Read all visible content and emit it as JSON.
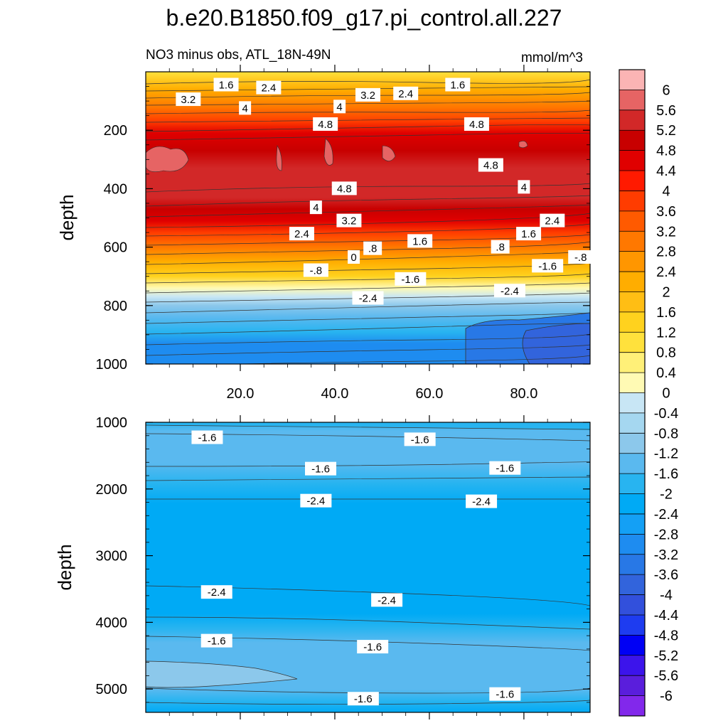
{
  "chart_data": {
    "type": "contour",
    "title": "b.e20.B1850.f09_g17.pi_control.all.227",
    "subtitle_left": "NO3 minus obs, ATL_18N-49N",
    "subtitle_right": "mmol/m^3",
    "colorbar": {
      "levels": [
        "6",
        "5.6",
        "5.2",
        "4.8",
        "4.4",
        "4",
        "3.6",
        "3.2",
        "2.8",
        "2.4",
        "2",
        "1.6",
        "1.2",
        "0.8",
        "0.4",
        "0",
        "-0.4",
        "-0.8",
        "-1.2",
        "-1.6",
        "-2",
        "-2.4",
        "-2.8",
        "-3.2",
        "-3.6",
        "-4",
        "-4.4",
        "-4.8",
        "-5.2",
        "-5.6",
        "-6"
      ],
      "colors": [
        "#fbb4b4",
        "#e66464",
        "#d22828",
        "#c80000",
        "#e00000",
        "#ff1a00",
        "#ff3c00",
        "#ff5a00",
        "#ff7800",
        "#ff9600",
        "#ffad00",
        "#ffbe14",
        "#ffd21e",
        "#ffe13c",
        "#fff078",
        "#fffab4",
        "#c8e6f5",
        "#a5d7f0",
        "#8cc8eb",
        "#5ab9ef",
        "#28b4f0",
        "#00aaf5",
        "#14a0f5",
        "#1e8cf0",
        "#2878e6",
        "#3264dc",
        "#3250dc",
        "#1e3cf0",
        "#0000f5",
        "#3c14eb",
        "#5a1edc",
        "#8228eb"
      ]
    },
    "panels": [
      {
        "name": "upper",
        "ylabel": "depth",
        "ylim": [
          0,
          1000
        ],
        "y_reversed": true,
        "xlim": [
          0,
          94
        ],
        "yticks": [
          "200",
          "400",
          "600",
          "800",
          "1000"
        ],
        "xticks": [
          "20.0",
          "40.0",
          "60.0",
          "80.0"
        ],
        "contour_labels": [
          {
            "text": "1.6",
            "x": 17,
            "y": 45
          },
          {
            "text": "2.4",
            "x": 26,
            "y": 55
          },
          {
            "text": "3.2",
            "x": 9,
            "y": 95
          },
          {
            "text": "4",
            "x": 21,
            "y": 125
          },
          {
            "text": "4",
            "x": 41,
            "y": 120
          },
          {
            "text": "3.2",
            "x": 47,
            "y": 80
          },
          {
            "text": "2.4",
            "x": 55,
            "y": 75
          },
          {
            "text": "1.6",
            "x": 66,
            "y": 45
          },
          {
            "text": "4.8",
            "x": 38,
            "y": 180
          },
          {
            "text": "4.8",
            "x": 70,
            "y": 180
          },
          {
            "text": "4.8",
            "x": 73,
            "y": 320
          },
          {
            "text": "4.8",
            "x": 42,
            "y": 400
          },
          {
            "text": "4",
            "x": 80,
            "y": 395
          },
          {
            "text": "4",
            "x": 36,
            "y": 465
          },
          {
            "text": "3.2",
            "x": 43,
            "y": 510
          },
          {
            "text": "2.4",
            "x": 33,
            "y": 555
          },
          {
            "text": "2.4",
            "x": 86,
            "y": 510
          },
          {
            "text": "1.6",
            "x": 58,
            "y": 580
          },
          {
            "text": "1.6",
            "x": 81,
            "y": 555
          },
          {
            "text": ".8",
            "x": 48,
            "y": 605
          },
          {
            "text": ".8",
            "x": 75,
            "y": 600
          },
          {
            "text": "0",
            "x": 44,
            "y": 635
          },
          {
            "text": "-.8",
            "x": 36,
            "y": 680
          },
          {
            "text": "-.8",
            "x": 92,
            "y": 635
          },
          {
            "text": "-1.6",
            "x": 56,
            "y": 710
          },
          {
            "text": "-1.6",
            "x": 85,
            "y": 665
          },
          {
            "text": "-2.4",
            "x": 47,
            "y": 775
          },
          {
            "text": "-2.4",
            "x": 77,
            "y": 750
          }
        ]
      },
      {
        "name": "lower",
        "ylabel": "depth",
        "ylim": [
          1000,
          5350
        ],
        "y_reversed": true,
        "xlim": [
          0,
          94
        ],
        "yticks": [
          "1000",
          "2000",
          "3000",
          "4000",
          "5000"
        ],
        "xticks": [],
        "contour_labels": [
          {
            "text": "-1.6",
            "x": 13,
            "y": 1230
          },
          {
            "text": "-1.6",
            "x": 58,
            "y": 1260
          },
          {
            "text": "-1.6",
            "x": 37,
            "y": 1700
          },
          {
            "text": "-1.6",
            "x": 76,
            "y": 1690
          },
          {
            "text": "-2.4",
            "x": 36,
            "y": 2180
          },
          {
            "text": "-2.4",
            "x": 71,
            "y": 2190
          },
          {
            "text": "-2.4",
            "x": 15,
            "y": 3550
          },
          {
            "text": "-2.4",
            "x": 51,
            "y": 3670
          },
          {
            "text": "-1.6",
            "x": 15,
            "y": 4280
          },
          {
            "text": "-1.6",
            "x": 48,
            "y": 4370
          },
          {
            "text": "-1.6",
            "x": 46,
            "y": 5150
          },
          {
            "text": "-1.6",
            "x": 76,
            "y": 5080
          }
        ]
      }
    ]
  }
}
